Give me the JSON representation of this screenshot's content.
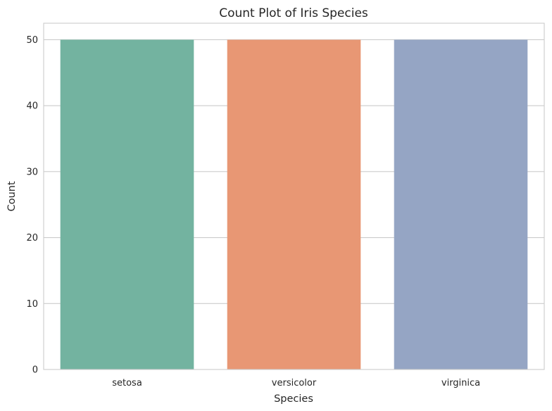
{
  "chart_data": {
    "type": "bar",
    "title": "Count Plot of Iris Species",
    "xlabel": "Species",
    "ylabel": "Count",
    "categories": [
      "setosa",
      "versicolor",
      "virginica"
    ],
    "values": [
      50,
      50,
      50
    ],
    "colors": [
      "#73b3a0",
      "#e89774",
      "#95a5c4"
    ],
    "ylim": [
      0,
      52.5
    ],
    "yticks": [
      0,
      10,
      20,
      30,
      40,
      50
    ],
    "grid": "horizontal",
    "legend": "none"
  }
}
